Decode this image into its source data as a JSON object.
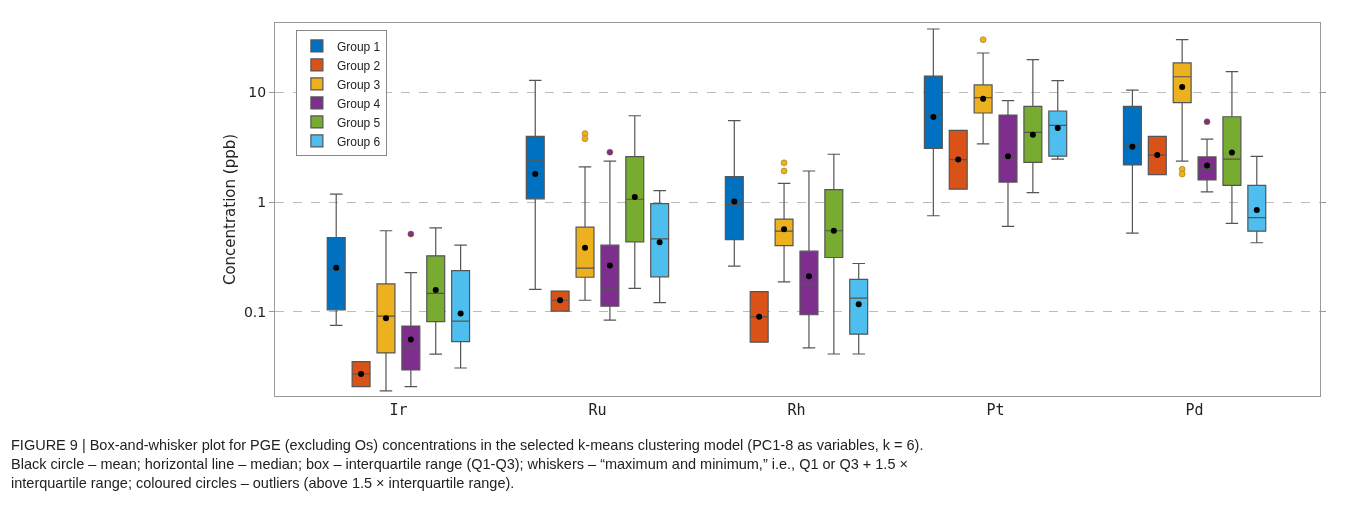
{
  "chart_data": {
    "type": "box",
    "ylabel": "Concentration (ppb)",
    "categories": [
      "Ir",
      "Ru",
      "Rh",
      "Pt",
      "Pd"
    ],
    "log": true,
    "ylim": [
      0.017,
      43
    ],
    "yticks": [
      0.1,
      1,
      10
    ],
    "grid": "y",
    "legend": "top left",
    "annotations": [
      "FIGURE 9 | Box-and-whisker plot for PGE (excluding Os) concentrations in the selected k-means clustering model (PC1-8 as variables, k = 6).\nBlack circle – mean; horizontal line – median; box – interquartile range (Q1-Q3); whiskers – “maximum and minimum,” i.e., Q1 or Q3 + 1.5 ×\ninterquartile range; coloured circles – outliers (above 1.5 × interquartile range)."
    ],
    "series": [
      {
        "name": "Group 1",
        "color": "#0070c0",
        "boxes": [
          {
            "low": 0.075,
            "q1": 0.104,
            "median": 0.242,
            "q3": 0.475,
            "high": 1.18,
            "mean": 0.252
          },
          {
            "low": 0.16,
            "q1": 1.07,
            "median": 2.41,
            "q3": 3.97,
            "high": 12.9,
            "mean": 1.8
          },
          {
            "low": 0.26,
            "q1": 0.455,
            "median": 0.953,
            "q3": 1.71,
            "high": 5.52,
            "mean": 1.01
          },
          {
            "low": 0.75,
            "q1": 3.08,
            "median": 6.22,
            "q3": 14.1,
            "high": 37.9,
            "mean": 5.97
          },
          {
            "low": 0.52,
            "q1": 2.18,
            "median": 3.38,
            "q3": 7.47,
            "high": 10.5,
            "mean": 3.19
          }
        ]
      },
      {
        "name": "Group 2",
        "color": "#d95319",
        "boxes": [
          {
            "low": 0.0207,
            "q1": 0.0207,
            "median": 0.027,
            "q3": 0.035,
            "high": 0.035,
            "mean": 0.027
          },
          {
            "low": 0.101,
            "q1": 0.101,
            "median": 0.127,
            "q3": 0.154,
            "high": 0.154,
            "mean": 0.127
          },
          {
            "low": 0.0527,
            "q1": 0.0527,
            "median": 0.0897,
            "q3": 0.152,
            "high": 0.152,
            "mean": 0.0897
          },
          {
            "low": 1.31,
            "q1": 1.31,
            "median": 2.44,
            "q3": 4.51,
            "high": 4.51,
            "mean": 2.44
          },
          {
            "low": 1.78,
            "q1": 1.78,
            "median": 2.68,
            "q3": 3.97,
            "high": 3.97,
            "mean": 2.68
          }
        ]
      },
      {
        "name": "Group 3",
        "color": "#edb120",
        "boxes": [
          {
            "low": 0.0189,
            "q1": 0.042,
            "median": 0.091,
            "q3": 0.179,
            "high": 0.547,
            "mean": 0.087
          },
          {
            "low": 0.127,
            "q1": 0.206,
            "median": 0.25,
            "q3": 0.59,
            "high": 2.09,
            "mean": 0.382,
            "outliers": [
              4.21,
              3.78
            ]
          },
          {
            "low": 0.187,
            "q1": 0.401,
            "median": 0.542,
            "q3": 0.699,
            "high": 1.48,
            "mean": 0.566,
            "outliers": [
              2.28,
              1.92
            ]
          },
          {
            "low": 3.4,
            "q1": 6.49,
            "median": 8.96,
            "q3": 11.7,
            "high": 22.9,
            "mean": 8.77,
            "outliers": [
              30.3
            ]
          },
          {
            "low": 2.36,
            "q1": 8.07,
            "median": 13.9,
            "q3": 18.6,
            "high": 30.3,
            "mean": 11.2,
            "outliers": [
              1.99,
              1.8
            ]
          }
        ]
      },
      {
        "name": "Group 4",
        "color": "#7e2f8e",
        "boxes": [
          {
            "low": 0.0207,
            "q1": 0.0294,
            "median": 0.0467,
            "q3": 0.074,
            "high": 0.227,
            "mean": 0.0557,
            "outliers": [
              0.51
            ]
          },
          {
            "low": 0.0837,
            "q1": 0.112,
            "median": 0.164,
            "q3": 0.404,
            "high": 2.36,
            "mean": 0.263,
            "outliers": [
              2.85
            ]
          },
          {
            "low": 0.0467,
            "q1": 0.0937,
            "median": 0.179,
            "q3": 0.356,
            "high": 1.92,
            "mean": 0.21
          },
          {
            "low": 0.599,
            "q1": 1.52,
            "median": 2.46,
            "q3": 6.22,
            "high": 8.41,
            "mean": 2.62
          },
          {
            "low": 1.24,
            "q1": 1.59,
            "median": 2.02,
            "q3": 2.58,
            "high": 3.75,
            "mean": 2.15,
            "outliers": [
              5.4
            ]
          }
        ]
      },
      {
        "name": "Group 5",
        "color": "#77ac30",
        "boxes": [
          {
            "low": 0.041,
            "q1": 0.081,
            "median": 0.147,
            "q3": 0.323,
            "high": 0.58,
            "mean": 0.158
          },
          {
            "low": 0.163,
            "q1": 0.434,
            "median": 1.06,
            "q3": 2.6,
            "high": 6.13,
            "mean": 1.11
          },
          {
            "low": 0.0411,
            "q1": 0.312,
            "median": 0.547,
            "q3": 1.3,
            "high": 2.73,
            "mean": 0.547
          },
          {
            "low": 1.22,
            "q1": 2.3,
            "median": 4.32,
            "q3": 7.47,
            "high": 19.9,
            "mean": 4.11
          },
          {
            "low": 0.638,
            "q1": 1.42,
            "median": 2.46,
            "q3": 6.0,
            "high": 15.5,
            "mean": 2.83
          }
        ]
      },
      {
        "name": "Group 6",
        "color": "#4dbeee",
        "boxes": [
          {
            "low": 0.0306,
            "q1": 0.0533,
            "median": 0.082,
            "q3": 0.237,
            "high": 0.404,
            "mean": 0.096
          },
          {
            "low": 0.121,
            "q1": 0.208,
            "median": 0.462,
            "q3": 0.966,
            "high": 1.27,
            "mean": 0.43
          },
          {
            "low": 0.0411,
            "q1": 0.0623,
            "median": 0.133,
            "q3": 0.197,
            "high": 0.275,
            "mean": 0.117
          },
          {
            "low": 2.46,
            "q1": 2.62,
            "median": 5.01,
            "q3": 6.77,
            "high": 12.8,
            "mean": 4.73
          },
          {
            "low": 0.425,
            "q1": 0.542,
            "median": 0.72,
            "q3": 1.42,
            "high": 2.61,
            "mean": 0.845
          }
        ]
      }
    ]
  }
}
